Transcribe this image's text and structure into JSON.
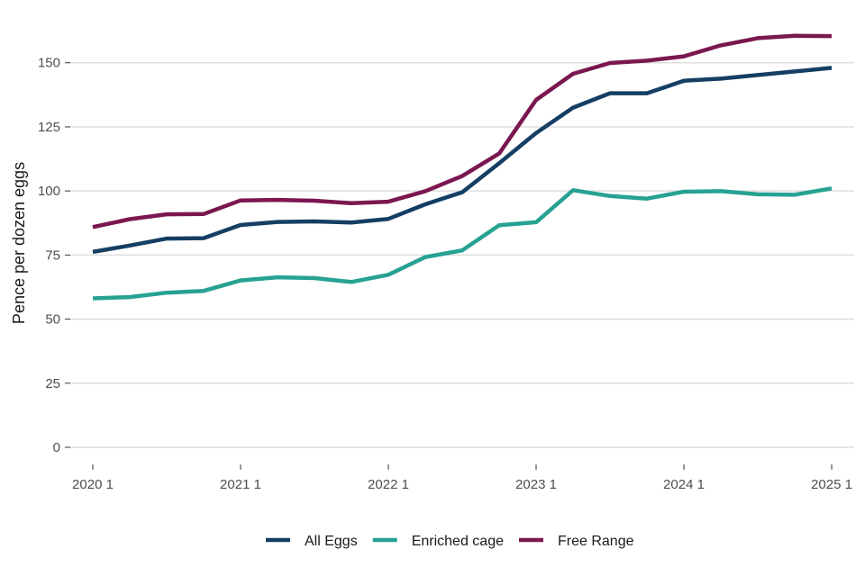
{
  "chart_data": {
    "type": "line",
    "title": "",
    "xlabel": "",
    "ylabel": "Pence per dozen eggs",
    "ylim": [
      0,
      165
    ],
    "yticks": [
      0,
      25,
      50,
      75,
      100,
      125,
      150
    ],
    "x": [
      0,
      1,
      2,
      3,
      4,
      5,
      6,
      7,
      8,
      9,
      10,
      11,
      12,
      13,
      14,
      15,
      16,
      17,
      18,
      19,
      20
    ],
    "xlim": [
      0,
      20
    ],
    "xticks": [
      {
        "x": 0,
        "label": "2020 1"
      },
      {
        "x": 4,
        "label": "2021 1"
      },
      {
        "x": 8,
        "label": "2022 1"
      },
      {
        "x": 12,
        "label": "2023 1"
      },
      {
        "x": 16,
        "label": "2024 1"
      },
      {
        "x": 20,
        "label": "2025 1"
      }
    ],
    "grid": true,
    "legend_position": "bottom",
    "series": [
      {
        "name": "All Eggs",
        "color": "#153e64",
        "values": [
          76.2,
          78.7,
          81.4,
          81.6,
          86.7,
          87.9,
          88.1,
          87.7,
          89.1,
          94.8,
          99.5,
          110.8,
          122.6,
          132.5,
          138.1,
          138.1,
          143.0,
          143.8,
          145.2,
          146.6,
          148.0
        ]
      },
      {
        "name": "Enriched cage",
        "color": "#27a292",
        "values": [
          58.1,
          58.6,
          60.3,
          61.0,
          65.1,
          66.3,
          66.0,
          64.5,
          67.3,
          74.2,
          76.8,
          86.6,
          87.8,
          100.3,
          98.0,
          97.0,
          99.7,
          99.9,
          98.7,
          98.5,
          101.0
        ]
      },
      {
        "name": "Free Range",
        "color": "#7b1750",
        "values": [
          85.9,
          89.0,
          90.9,
          91.0,
          96.3,
          96.5,
          96.2,
          95.2,
          95.8,
          99.9,
          105.8,
          114.6,
          135.5,
          145.7,
          149.9,
          150.8,
          152.5,
          156.8,
          159.6,
          160.5,
          160.4
        ]
      }
    ]
  }
}
